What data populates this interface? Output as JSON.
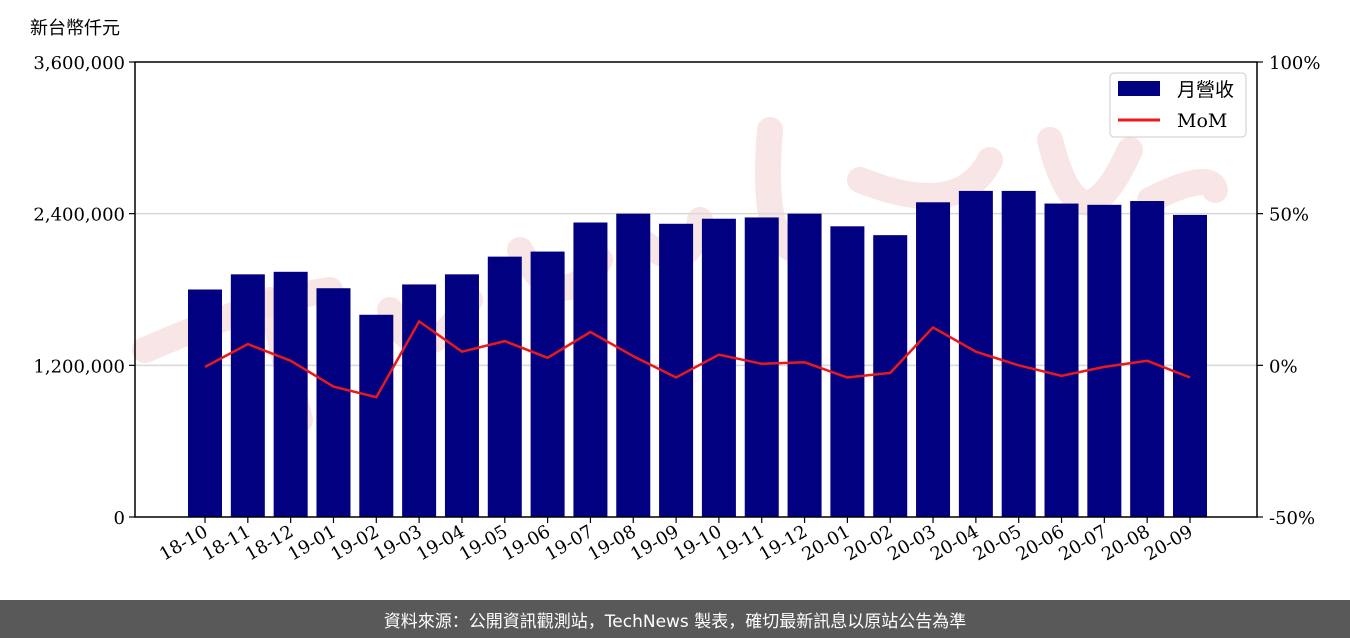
{
  "chart_data": {
    "type": "bar",
    "y_unit_label": "新台幣仟元",
    "categories": [
      "18-10",
      "18-11",
      "18-12",
      "19-01",
      "19-02",
      "19-03",
      "19-04",
      "19-05",
      "19-06",
      "19-07",
      "19-08",
      "19-09",
      "19-10",
      "19-11",
      "19-12",
      "20-01",
      "20-02",
      "20-03",
      "20-04",
      "20-05",
      "20-06",
      "20-07",
      "20-08",
      "20-09"
    ],
    "series": [
      {
        "name": "月營收",
        "type": "bar",
        "axis": "left",
        "color": "#000080",
        "values": [
          1800000,
          1920000,
          1940000,
          1810000,
          1600000,
          1840000,
          1920000,
          2060000,
          2100000,
          2330000,
          2400000,
          2320000,
          2360000,
          2370000,
          2400000,
          2300000,
          2230000,
          2490000,
          2580000,
          2580000,
          2480000,
          2470000,
          2500000,
          2390000
        ]
      },
      {
        "name": "MoM",
        "type": "line",
        "axis": "right",
        "color": "#e8191c",
        "values": [
          -0.5,
          7,
          1.5,
          -7,
          -10.5,
          14.5,
          4.5,
          8,
          2.5,
          11,
          3,
          -4,
          3.5,
          0.5,
          1,
          -4,
          -2.5,
          12.5,
          4.5,
          0,
          -3.5,
          -0.5,
          1.5,
          -4
        ]
      }
    ],
    "y_left": {
      "ylim": [
        0,
        3600000
      ],
      "ticks": [
        "0",
        "1,200,000",
        "2,400,000",
        "3,600,000"
      ],
      "tick_values": [
        0,
        1200000,
        2400000,
        3600000
      ]
    },
    "y_right": {
      "ylim": [
        -50,
        100
      ],
      "ticks": [
        "-50%",
        "0%",
        "50%",
        "100%"
      ],
      "tick_values": [
        -50,
        0,
        50,
        100
      ]
    },
    "grid": "horizontal",
    "legend_position": "top-right"
  },
  "footer": {
    "text": "資料來源：公開資訊觀測站，TechNews 製表，確切最新訊息以原站公告為準"
  }
}
